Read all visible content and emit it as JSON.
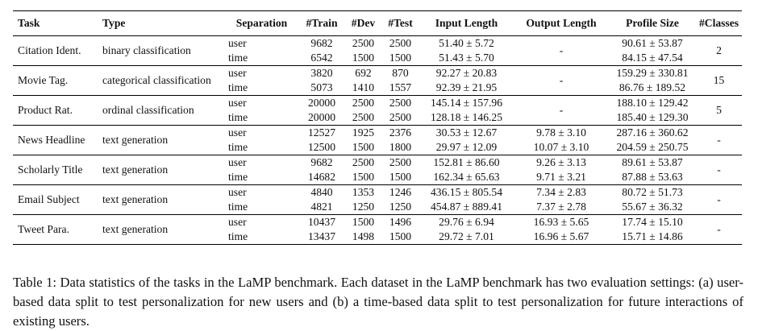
{
  "headers": {
    "task": "Task",
    "type": "Type",
    "separation": "Separation",
    "train": "#Train",
    "dev": "#Dev",
    "test": "#Test",
    "input_length": "Input Length",
    "output_length": "Output Length",
    "profile_size": "Profile Size",
    "classes": "#Classes"
  },
  "groups": [
    {
      "task": "Citation Ident.",
      "type": "binary classification",
      "output": "-",
      "classes": "2",
      "rows": [
        {
          "sep": "user",
          "train": "9682",
          "dev": "2500",
          "test": "2500",
          "input": "51.40 ± 5.72",
          "profile": "90.61 ± 53.87"
        },
        {
          "sep": "time",
          "train": "6542",
          "dev": "1500",
          "test": "1500",
          "input": "51.43 ± 5.70",
          "profile": "84.15 ± 47.54"
        }
      ]
    },
    {
      "task": "Movie Tag.",
      "type": "categorical classification",
      "output": "-",
      "classes": "15",
      "rows": [
        {
          "sep": "user",
          "train": "3820",
          "dev": "692",
          "test": "870",
          "input": "92.27 ± 20.83",
          "profile": "159.29 ± 330.81"
        },
        {
          "sep": "time",
          "train": "5073",
          "dev": "1410",
          "test": "1557",
          "input": "92.39 ± 21.95",
          "profile": "86.76 ± 189.52"
        }
      ]
    },
    {
      "task": "Product Rat.",
      "type": "ordinal classification",
      "output": "-",
      "classes": "5",
      "rows": [
        {
          "sep": "user",
          "train": "20000",
          "dev": "2500",
          "test": "2500",
          "input": "145.14 ± 157.96",
          "profile": "188.10 ± 129.42"
        },
        {
          "sep": "time",
          "train": "20000",
          "dev": "2500",
          "test": "2500",
          "input": "128.18 ± 146.25",
          "profile": "185.40 ± 129.30"
        }
      ]
    },
    {
      "task": "News Headline",
      "type": "text generation",
      "classes": "-",
      "rows": [
        {
          "sep": "user",
          "train": "12527",
          "dev": "1925",
          "test": "2376",
          "input": "30.53 ± 12.67",
          "output": "9.78 ± 3.10",
          "profile": "287.16 ± 360.62"
        },
        {
          "sep": "time",
          "train": "12500",
          "dev": "1500",
          "test": "1800",
          "input": "29.97 ± 12.09",
          "output": "10.07 ± 3.10",
          "profile": "204.59 ± 250.75"
        }
      ]
    },
    {
      "task": "Scholarly Title",
      "type": "text generation",
      "classes": "-",
      "rows": [
        {
          "sep": "user",
          "train": "9682",
          "dev": "2500",
          "test": "2500",
          "input": "152.81 ± 86.60",
          "output": "9.26 ± 3.13",
          "profile": "89.61 ± 53.87"
        },
        {
          "sep": "time",
          "train": "14682",
          "dev": "1500",
          "test": "1500",
          "input": "162.34 ± 65.63",
          "output": "9.71 ± 3.21",
          "profile": "87.88 ± 53.63"
        }
      ]
    },
    {
      "task": "Email Subject",
      "type": "text generation",
      "classes": "-",
      "rows": [
        {
          "sep": "user",
          "train": "4840",
          "dev": "1353",
          "test": "1246",
          "input": "436.15 ± 805.54",
          "output": "7.34 ± 2.83",
          "profile": "80.72 ± 51.73"
        },
        {
          "sep": "time",
          "train": "4821",
          "dev": "1250",
          "test": "1250",
          "input": "454.87 ± 889.41",
          "output": "7.37 ± 2.78",
          "profile": "55.67 ± 36.32"
        }
      ]
    },
    {
      "task": "Tweet Para.",
      "type": "text generation",
      "classes": "-",
      "rows": [
        {
          "sep": "user",
          "train": "10437",
          "dev": "1500",
          "test": "1496",
          "input": "29.76 ± 6.94",
          "output": "16.93 ± 5.65",
          "profile": "17.74 ± 15.10"
        },
        {
          "sep": "time",
          "train": "13437",
          "dev": "1498",
          "test": "1500",
          "input": "29.72 ± 7.01",
          "output": "16.96 ± 5.67",
          "profile": "15.71 ± 14.86"
        }
      ]
    }
  ],
  "caption": "Table 1: Data statistics of the tasks in the LaMP benchmark. Each dataset in the LaMP benchmark has two evaluation settings: (a) user-based data split to test personalization for new users and (b) a time-based data split to test personalization for future interactions of existing users."
}
